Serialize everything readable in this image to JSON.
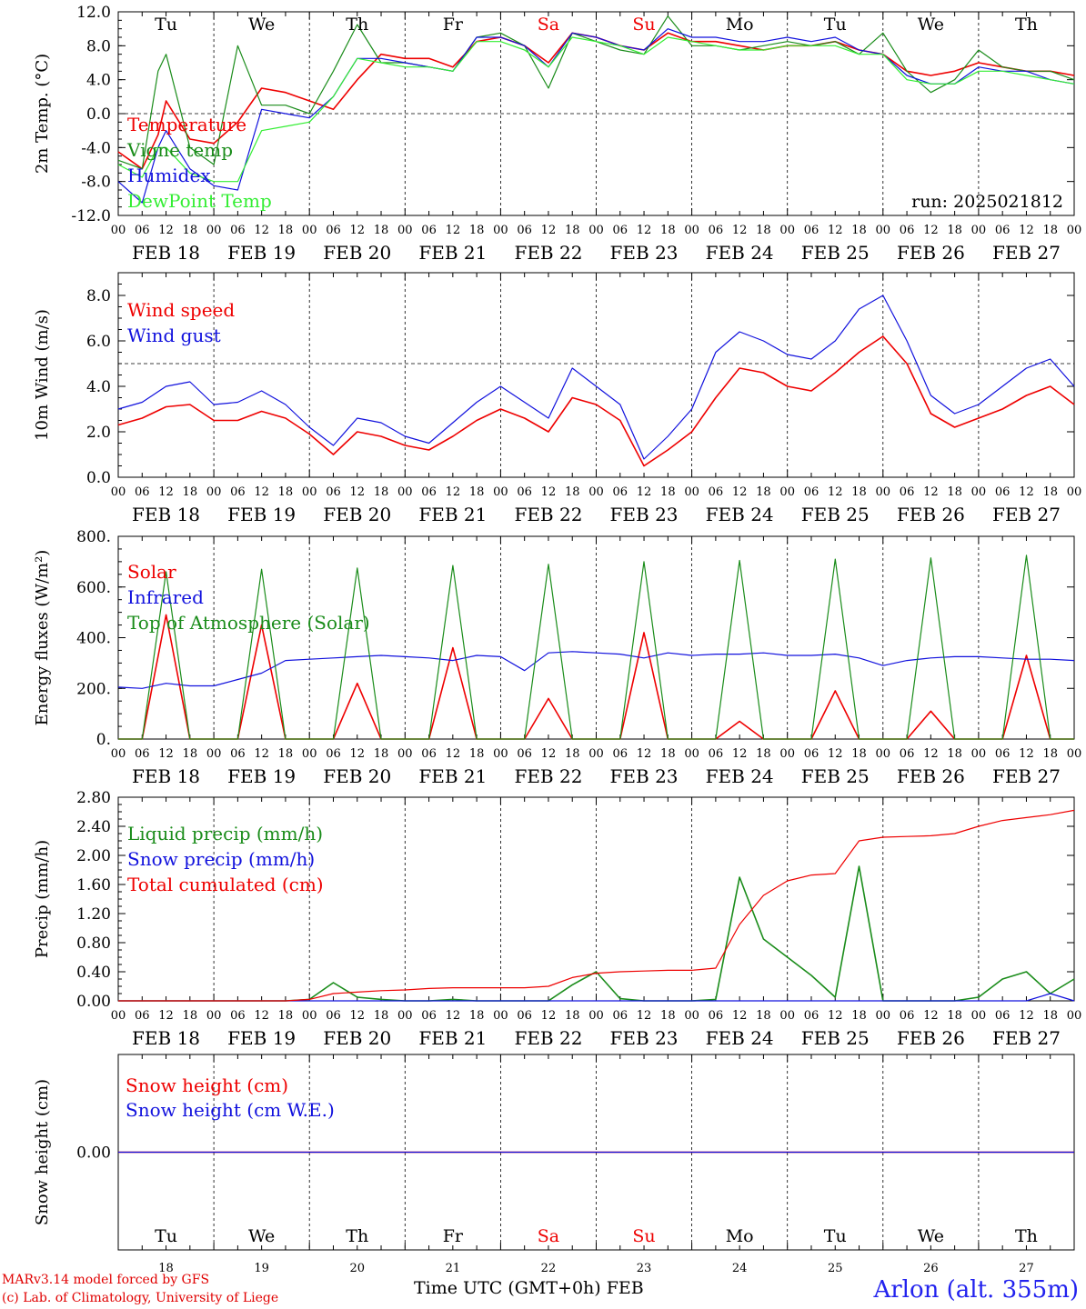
{
  "footer": {
    "credit_line1": "MARv3.14 model forced by GFS",
    "credit_line2": "(c) Lab. of Climatology, University of Liege",
    "time_axis_label": "Time UTC (GMT+0h) FEB",
    "station": "Arlon (alt. 355m)"
  },
  "colors": {
    "red": "#ee0000",
    "green": "#1a8c1a",
    "blue": "#1111dd",
    "light_green": "#33ee33"
  },
  "chart_data": [
    {
      "type": "line",
      "ylabel": "2m Temp. (°C)",
      "ylim": [
        -12,
        12
      ],
      "yticks": [
        "-12.0",
        "-8.0",
        "-4.0",
        "0.0",
        "4.0",
        "8.0",
        "12.0"
      ],
      "reference_line": 0,
      "run_label": "run: 2025021812",
      "day_names": [
        "Tu",
        "We",
        "Th",
        "Fr",
        "Sa",
        "Su",
        "Mo",
        "Tu",
        "We",
        "Th"
      ],
      "x_hours": [
        0,
        6,
        10,
        12,
        18,
        24,
        30,
        36,
        42,
        48,
        54,
        60,
        66,
        72,
        78,
        84,
        90,
        96,
        102,
        108,
        114,
        120,
        126,
        132,
        138,
        144,
        150,
        156,
        162,
        168,
        174,
        180,
        186,
        192,
        198,
        204,
        210,
        216,
        222,
        228,
        234,
        240
      ],
      "series": [
        {
          "name": "Temperature",
          "color": "#ee0000",
          "values": [
            -4.5,
            -6.5,
            -2.5,
            1.5,
            -3.0,
            -3.5,
            -1.0,
            3.0,
            2.5,
            1.5,
            0.5,
            4.0,
            7.0,
            6.5,
            6.5,
            5.5,
            8.5,
            9.0,
            8.0,
            6.0,
            9.5,
            9.0,
            8.0,
            7.5,
            9.5,
            8.5,
            8.5,
            8.0,
            7.5,
            8.0,
            8.0,
            8.5,
            7.5,
            7.0,
            5.0,
            4.5,
            5.0,
            6.0,
            5.5,
            5.0,
            5.0,
            4.5
          ]
        },
        {
          "name": "Vigne temp",
          "color": "#1a8c1a",
          "values": [
            -5.5,
            -6.5,
            5.0,
            7.0,
            -4.0,
            -6.0,
            8.0,
            1.0,
            1.0,
            0.0,
            5.0,
            10.5,
            6.0,
            6.0,
            5.5,
            5.0,
            9.0,
            9.5,
            8.0,
            3.0,
            9.5,
            8.5,
            7.5,
            7.0,
            11.5,
            8.0,
            8.0,
            7.5,
            8.0,
            8.5,
            8.0,
            8.5,
            7.0,
            9.5,
            5.0,
            2.5,
            4.0,
            7.5,
            5.5,
            5.0,
            5.0,
            4.0
          ]
        },
        {
          "name": "Humidex",
          "color": "#1111dd",
          "values": [
            -8.0,
            -10.5,
            -4.0,
            -2.0,
            -6.5,
            -8.5,
            -9.0,
            0.5,
            0.0,
            -0.5,
            2.0,
            6.5,
            6.5,
            6.0,
            5.5,
            5.0,
            9.0,
            9.0,
            8.0,
            5.5,
            9.5,
            9.0,
            8.0,
            7.5,
            10.0,
            9.0,
            9.0,
            8.5,
            8.5,
            9.0,
            8.5,
            9.0,
            7.5,
            7.0,
            4.5,
            3.5,
            3.5,
            5.5,
            5.0,
            5.0,
            4.0,
            3.5
          ]
        },
        {
          "name": "DewPoint Temp",
          "color": "#33ee33",
          "values": [
            -6.0,
            -7.5,
            -4.0,
            -4.0,
            -7.0,
            -8.0,
            -8.0,
            -2.0,
            -1.5,
            -1.0,
            2.0,
            6.5,
            6.0,
            5.5,
            5.5,
            5.0,
            8.5,
            8.5,
            7.5,
            5.5,
            9.0,
            8.5,
            8.0,
            7.0,
            9.0,
            8.5,
            8.0,
            7.5,
            7.5,
            8.0,
            8.0,
            8.0,
            7.0,
            7.0,
            4.0,
            3.5,
            3.5,
            5.0,
            5.0,
            4.5,
            4.0,
            3.5
          ]
        }
      ]
    },
    {
      "type": "line",
      "ylabel": "10m Wind (m/s)",
      "ylim": [
        0,
        9
      ],
      "yticks": [
        "0.0",
        "2.0",
        "4.0",
        "6.0",
        "8.0"
      ],
      "reference_line": 5,
      "x_hours": [
        0,
        6,
        12,
        18,
        24,
        30,
        36,
        42,
        48,
        54,
        60,
        66,
        72,
        78,
        84,
        90,
        96,
        102,
        108,
        114,
        120,
        126,
        132,
        138,
        144,
        150,
        156,
        162,
        168,
        174,
        180,
        186,
        192,
        198,
        204,
        210,
        216,
        222,
        228,
        234,
        240
      ],
      "series": [
        {
          "name": "Wind speed",
          "color": "#ee0000",
          "values": [
            2.3,
            2.6,
            3.1,
            3.2,
            2.5,
            2.5,
            2.9,
            2.6,
            1.9,
            1.0,
            2.0,
            1.8,
            1.4,
            1.2,
            1.8,
            2.5,
            3.0,
            2.6,
            2.0,
            3.5,
            3.2,
            2.5,
            0.5,
            1.2,
            2.0,
            3.5,
            4.8,
            4.6,
            4.0,
            3.8,
            4.6,
            5.5,
            6.2,
            5.0,
            2.8,
            2.2,
            2.6,
            3.0,
            3.6,
            4.0,
            3.2
          ]
        },
        {
          "name": "Wind gust",
          "color": "#1111dd",
          "values": [
            3.0,
            3.3,
            4.0,
            4.2,
            3.2,
            3.3,
            3.8,
            3.2,
            2.2,
            1.4,
            2.6,
            2.4,
            1.8,
            1.5,
            2.4,
            3.3,
            4.0,
            3.3,
            2.6,
            4.8,
            4.0,
            3.2,
            0.8,
            1.8,
            3.0,
            5.5,
            6.4,
            6.0,
            5.4,
            5.2,
            6.0,
            7.4,
            8.0,
            6.0,
            3.6,
            2.8,
            3.2,
            4.0,
            4.8,
            5.2,
            4.0
          ]
        }
      ]
    },
    {
      "type": "line",
      "ylabel": "Energy fluxes (W/m²)",
      "ylim": [
        0,
        800
      ],
      "yticks": [
        "0.",
        "200.",
        "400.",
        "600.",
        "800."
      ],
      "x_hours": [
        0,
        6,
        12,
        18,
        24,
        30,
        36,
        42,
        48,
        54,
        60,
        66,
        72,
        78,
        84,
        90,
        96,
        102,
        108,
        114,
        120,
        126,
        132,
        138,
        144,
        150,
        156,
        162,
        168,
        174,
        180,
        186,
        192,
        198,
        204,
        210,
        216,
        222,
        228,
        234,
        240
      ],
      "series": [
        {
          "name": "Solar",
          "color": "#ee0000",
          "values": [
            0,
            0,
            490,
            0,
            0,
            0,
            450,
            0,
            0,
            0,
            220,
            0,
            0,
            0,
            360,
            0,
            0,
            0,
            160,
            0,
            0,
            0,
            420,
            0,
            0,
            0,
            70,
            0,
            0,
            0,
            190,
            0,
            0,
            0,
            110,
            0,
            0,
            0,
            330,
            0,
            0
          ]
        },
        {
          "name": "Infrared",
          "color": "#1111dd",
          "values": [
            205,
            200,
            220,
            210,
            210,
            235,
            260,
            310,
            315,
            320,
            325,
            330,
            325,
            320,
            310,
            330,
            325,
            270,
            340,
            345,
            340,
            335,
            320,
            340,
            330,
            335,
            335,
            340,
            330,
            330,
            335,
            320,
            290,
            310,
            320,
            325,
            325,
            320,
            315,
            315,
            310
          ]
        },
        {
          "name": "Top of Atmosphere (Solar)",
          "color": "#1a8c1a",
          "values": [
            0,
            0,
            660,
            0,
            0,
            0,
            670,
            0,
            0,
            0,
            675,
            0,
            0,
            0,
            685,
            0,
            0,
            0,
            690,
            0,
            0,
            0,
            700,
            0,
            0,
            0,
            705,
            0,
            0,
            0,
            710,
            0,
            0,
            0,
            715,
            0,
            0,
            0,
            725,
            0,
            0
          ]
        }
      ]
    },
    {
      "type": "line",
      "ylabel": "Precip (mm/h)",
      "ylim": [
        0,
        2.8
      ],
      "yticks": [
        "0.00",
        "0.40",
        "0.80",
        "1.20",
        "1.60",
        "2.00",
        "2.40",
        "2.80"
      ],
      "x_hours": [
        0,
        6,
        12,
        18,
        24,
        30,
        36,
        42,
        48,
        54,
        60,
        66,
        72,
        78,
        84,
        90,
        96,
        102,
        108,
        114,
        120,
        126,
        132,
        138,
        144,
        150,
        156,
        162,
        168,
        174,
        180,
        186,
        192,
        198,
        204,
        210,
        216,
        222,
        228,
        234,
        240
      ],
      "series": [
        {
          "name": "Liquid precip (mm/h)",
          "color": "#1a8c1a",
          "values": [
            0,
            0,
            0,
            0,
            0,
            0,
            0,
            0,
            0.02,
            0.25,
            0.05,
            0.02,
            0,
            0,
            0.02,
            0,
            0,
            0,
            0,
            0.22,
            0.4,
            0.03,
            0,
            0,
            0,
            0.02,
            1.7,
            0.85,
            0.6,
            0.35,
            0.05,
            1.85,
            0,
            0,
            0,
            0,
            0.05,
            0.3,
            0.4,
            0.1,
            0.3
          ]
        },
        {
          "name": "Snow precip (mm/h)",
          "color": "#1111dd",
          "values": [
            0,
            0,
            0,
            0,
            0,
            0,
            0,
            0,
            0,
            0,
            0,
            0,
            0,
            0,
            0,
            0,
            0,
            0,
            0,
            0,
            0,
            0,
            0,
            0,
            0,
            0,
            0,
            0,
            0,
            0,
            0,
            0,
            0,
            0,
            0,
            0,
            0,
            0,
            0,
            0.1,
            0
          ]
        },
        {
          "name": "Total cumulated (cm)",
          "color": "#ee0000",
          "values": [
            0,
            0,
            0,
            0,
            0,
            0,
            0,
            0,
            0.02,
            0.1,
            0.12,
            0.14,
            0.15,
            0.17,
            0.18,
            0.18,
            0.18,
            0.18,
            0.2,
            0.32,
            0.38,
            0.4,
            0.41,
            0.42,
            0.42,
            0.45,
            1.05,
            1.45,
            1.65,
            1.73,
            1.75,
            2.2,
            2.25,
            2.26,
            2.27,
            2.3,
            2.4,
            2.48,
            2.52,
            2.56,
            2.62
          ]
        }
      ]
    },
    {
      "type": "line",
      "ylabel": "Snow height (cm)",
      "ylim": [
        -1,
        1
      ],
      "yticks": [
        "0.00"
      ],
      "day_names": [
        "Tu",
        "We",
        "Th",
        "Fr",
        "Sa",
        "Su",
        "Mo",
        "Tu",
        "We",
        "Th"
      ],
      "day_numbers": [
        "18",
        "19",
        "20",
        "21",
        "22",
        "23",
        "24",
        "25",
        "26",
        "27"
      ],
      "x_hours": [
        0,
        240
      ],
      "series": [
        {
          "name": "Snow height (cm)",
          "color": "#ee0000",
          "values": [
            0,
            0
          ]
        },
        {
          "name": "Snow height (cm W.E.)",
          "color": "#1111dd",
          "values": [
            0,
            0
          ]
        }
      ]
    }
  ],
  "x_axis": {
    "hour_labels": [
      "00",
      "06",
      "12",
      "18"
    ],
    "final_label": "00",
    "date_labels": [
      "FEB 18",
      "FEB 19",
      "FEB 20",
      "FEB 21",
      "FEB 22",
      "FEB 23",
      "FEB 24",
      "FEB 25",
      "FEB 26",
      "FEB 27"
    ],
    "weekend_days": [
      4,
      5
    ]
  }
}
